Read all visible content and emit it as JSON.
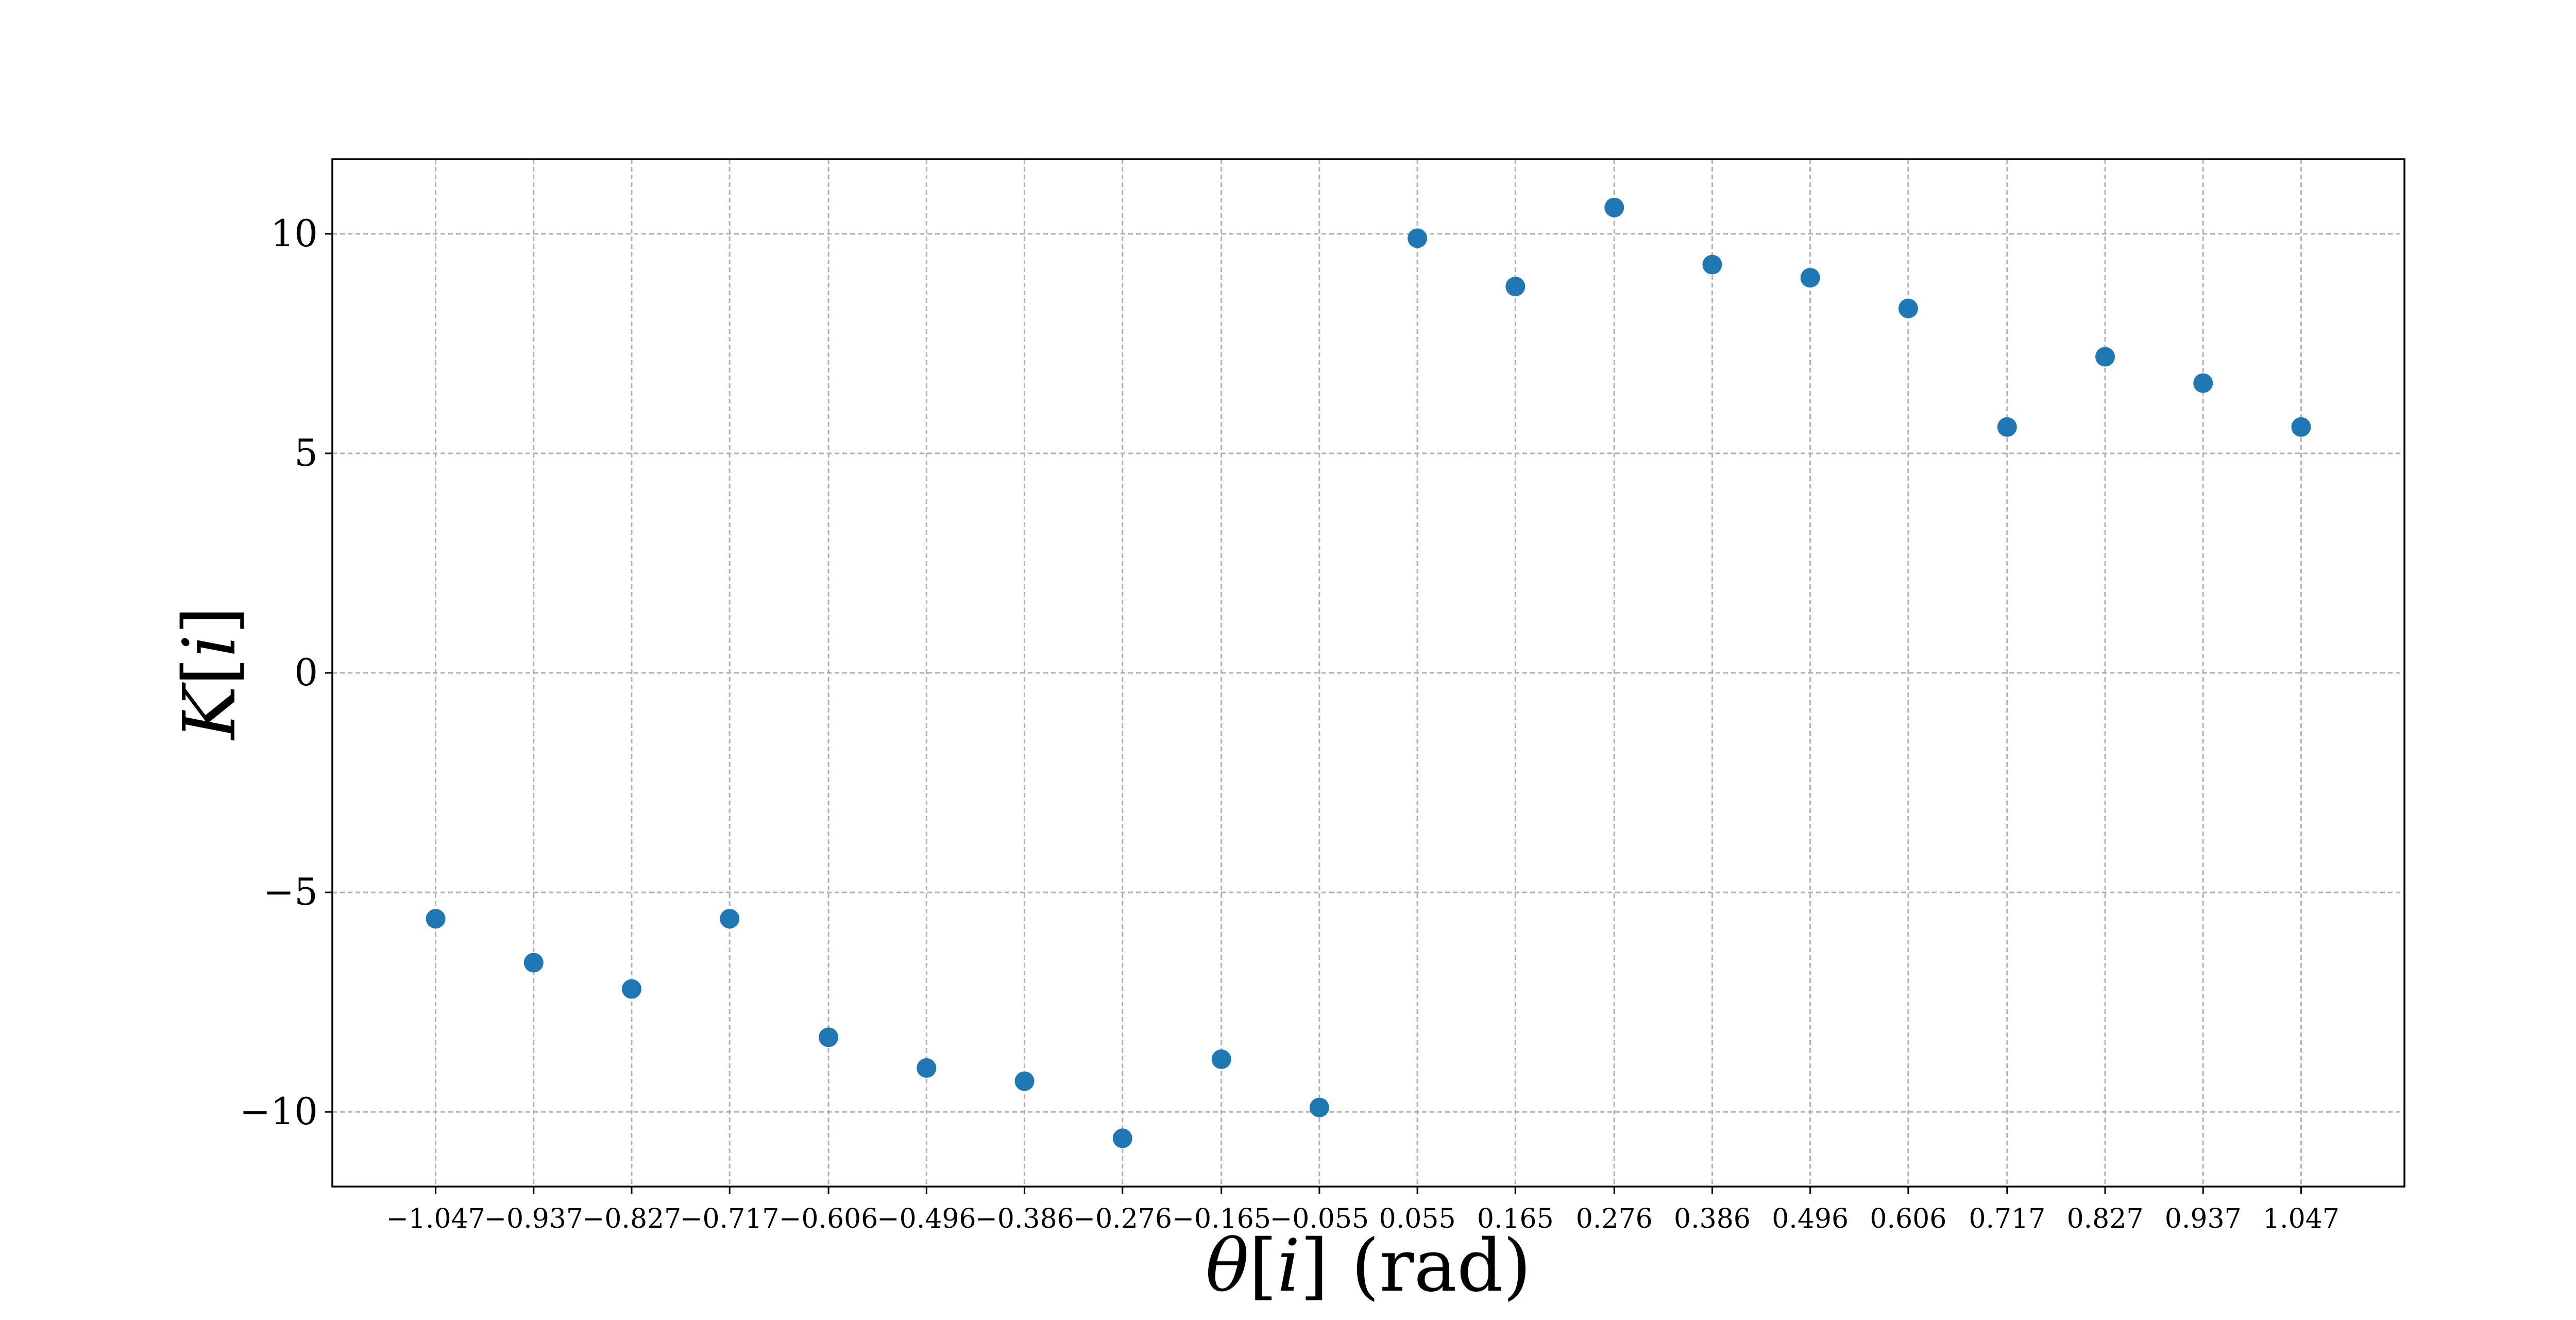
{
  "chart_data": {
    "type": "scatter",
    "xlabel_parts": [
      {
        "text": "θ",
        "italic": true
      },
      {
        "text": "[",
        "italic": false
      },
      {
        "text": "i",
        "italic": true
      },
      {
        "text": "] (rad)",
        "italic": false
      }
    ],
    "ylabel_parts": [
      {
        "text": "K",
        "italic": true
      },
      {
        "text": "[",
        "italic": false
      },
      {
        "text": "i",
        "italic": true
      },
      {
        "text": "]",
        "italic": false
      }
    ],
    "x_ticks": [
      "−1.047",
      "−0.937",
      "−0.827",
      "−0.717",
      "−0.606",
      "−0.496",
      "−0.386",
      "−0.276",
      "−0.165",
      "−0.055",
      "0.055",
      "0.165",
      "0.276",
      "0.386",
      "0.496",
      "0.606",
      "0.717",
      "0.827",
      "0.937",
      "1.047"
    ],
    "y_ticks": [
      {
        "value": 10,
        "label": "10"
      },
      {
        "value": 5,
        "label": "5"
      },
      {
        "value": 0,
        "label": "0"
      },
      {
        "value": -5,
        "label": "−5"
      },
      {
        "value": -10,
        "label": "−10"
      }
    ],
    "x": [
      -1.047,
      -0.937,
      -0.827,
      -0.717,
      -0.606,
      -0.496,
      -0.386,
      -0.276,
      -0.165,
      -0.055,
      0.055,
      0.165,
      0.276,
      0.386,
      0.496,
      0.606,
      0.717,
      0.827,
      0.937,
      1.047
    ],
    "y": [
      -5.6,
      -6.6,
      -7.2,
      -5.6,
      -8.3,
      -9.0,
      -9.3,
      -10.6,
      -8.8,
      -9.9,
      9.9,
      8.8,
      10.6,
      9.3,
      9.0,
      8.3,
      5.6,
      7.2,
      6.6,
      5.6
    ],
    "xlim": [
      -1.163,
      1.163
    ],
    "ylim": [
      -11.7,
      11.7
    ],
    "grid": true,
    "marker_color": "#1f77b4"
  }
}
